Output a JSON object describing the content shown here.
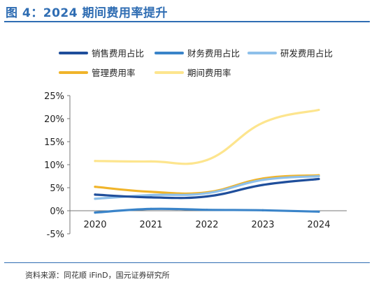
{
  "figure": {
    "title": "图 4：2024 期间费用率提升",
    "source": "资料来源：同花顺 iFinD，国元证券研究所"
  },
  "chart_data": {
    "type": "line",
    "x": [
      "2020",
      "2021",
      "2022",
      "2023",
      "2024"
    ],
    "ylim": [
      -5,
      25
    ],
    "yticks": [
      -5,
      0,
      5,
      10,
      15,
      20,
      25
    ],
    "ytick_labels": [
      "-5%",
      "0%",
      "5%",
      "10%",
      "15%",
      "20%",
      "25%"
    ],
    "y_unit": "%",
    "grid": false,
    "smooth": true,
    "legend_position": "top",
    "series": [
      {
        "name": "销售费用占比",
        "color": "#1f4e9b",
        "values": [
          3.5,
          2.9,
          3.1,
          5.6,
          6.9
        ]
      },
      {
        "name": "财务费用占比",
        "color": "#3a84c9",
        "values": [
          -0.4,
          0.4,
          0.2,
          0.1,
          -0.2
        ]
      },
      {
        "name": "研发费用占比",
        "color": "#8ec0ea",
        "values": [
          2.6,
          3.4,
          3.8,
          6.7,
          7.5
        ]
      },
      {
        "name": "管理费用率",
        "color": "#f0b42a",
        "values": [
          5.2,
          4.1,
          4.0,
          7.0,
          7.7
        ]
      },
      {
        "name": "期间费用率",
        "color": "#fde58e",
        "values": [
          10.8,
          10.7,
          11.0,
          19.1,
          21.9
        ]
      }
    ]
  }
}
